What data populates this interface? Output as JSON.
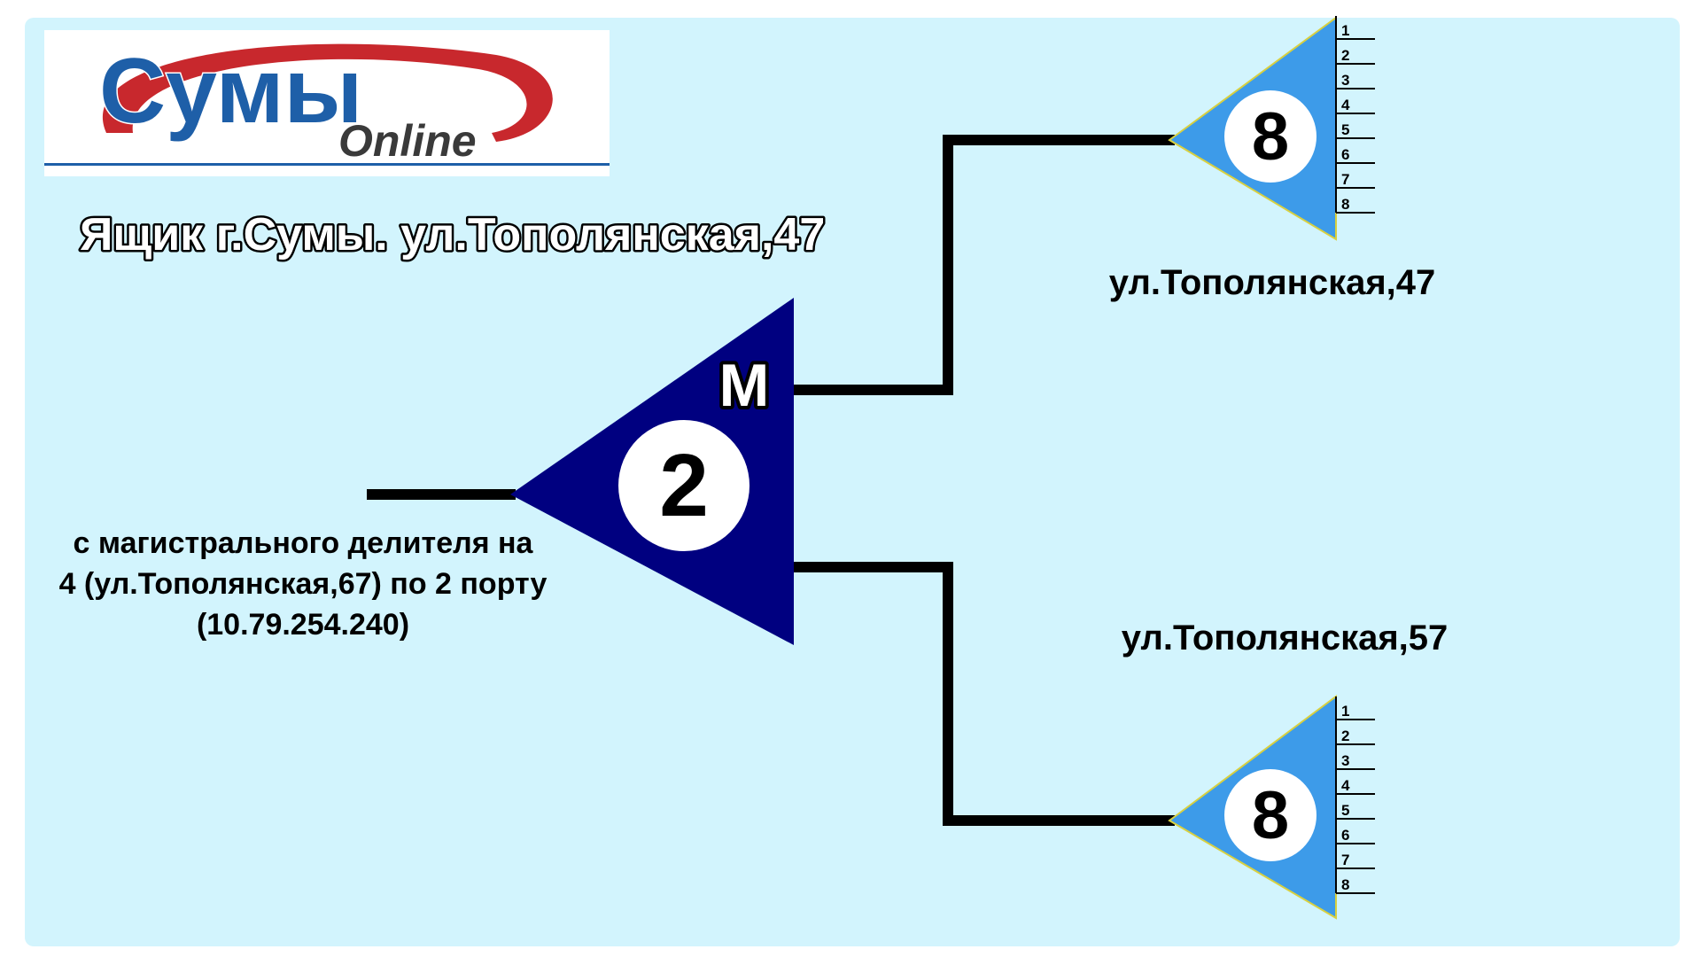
{
  "logo": {
    "brand": "Сумы",
    "sub": "Online",
    "colors": {
      "ring": "#c8282d",
      "brand": "#1e5fa8",
      "sub": "#3a3a3a",
      "rule": "#1e5fa8"
    }
  },
  "title": "Ящик г.Сумы. ул.Тополянская,47",
  "main_splitter": {
    "ratio": "2",
    "marker": "M",
    "color": "#000080"
  },
  "input_note": {
    "lines": [
      "с магистрального делителя на",
      "4 (ул.Тополянская,67) по 2 порту",
      "(10.79.254.240)"
    ]
  },
  "branches": [
    {
      "ratio": "8",
      "label": "ул.Тополянская,47",
      "ports": [
        "1",
        "2",
        "3",
        "4",
        "5",
        "6",
        "7",
        "8"
      ],
      "color": "#3d9be9"
    },
    {
      "ratio": "8",
      "label": "ул.Тополянская,57",
      "ports": [
        "1",
        "2",
        "3",
        "4",
        "5",
        "6",
        "7",
        "8"
      ],
      "color": "#3d9be9"
    }
  ],
  "colors": {
    "panel": "#d2f4fd",
    "line": "#000000"
  }
}
